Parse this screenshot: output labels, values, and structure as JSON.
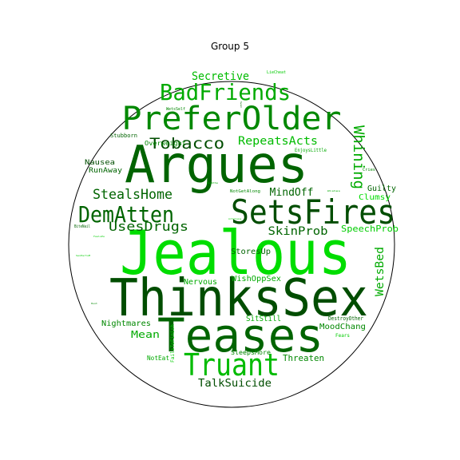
{
  "title": "Group 5",
  "colors": {
    "circle_stroke": "#000000",
    "bright_green": "#00dd00",
    "mid_green": "#00aa00",
    "green": "#008800",
    "dark_green": "#006400",
    "deep_green": "#004d00",
    "darkest_green": "#003300"
  },
  "words": [
    {
      "text": "Jealous",
      "color": "#00dd00"
    },
    {
      "text": "ThinksSex",
      "color": "#004d00"
    },
    {
      "text": "Argues",
      "color": "#006400"
    },
    {
      "text": "Teases",
      "color": "#006400"
    },
    {
      "text": "SetsFires",
      "color": "#004d00"
    },
    {
      "text": "PreferOlder",
      "color": "#008800"
    },
    {
      "text": "DemAtten",
      "color": "#006400"
    },
    {
      "text": "Truant",
      "color": "#00bb00"
    },
    {
      "text": "BadFriends",
      "color": "#00aa00"
    },
    {
      "text": "Tobacco",
      "color": "#004d00"
    },
    {
      "text": "Whining",
      "color": "#00aa00"
    },
    {
      "text": "StealsHome",
      "color": "#006400"
    },
    {
      "text": "UsesDrugs",
      "color": "#006400"
    },
    {
      "text": "RepeatsActs",
      "color": "#00bb00"
    },
    {
      "text": "Secretive",
      "color": "#00bb00"
    },
    {
      "text": "SkinProb",
      "color": "#006400"
    },
    {
      "text": "WetsBed",
      "color": "#00aa00"
    },
    {
      "text": "TalkSuicide",
      "color": "#004d00"
    },
    {
      "text": "MindOff",
      "color": "#006400"
    },
    {
      "text": "SpeechProb",
      "color": "#00cc00"
    },
    {
      "text": "Threaten",
      "color": "#008800"
    },
    {
      "text": "Mean",
      "color": "#00aa00"
    },
    {
      "text": "Nightmares",
      "color": "#008800"
    },
    {
      "text": "StoresUp",
      "color": "#006400"
    },
    {
      "text": "WishOppSex",
      "color": "#00aa00"
    },
    {
      "text": "MoodChang",
      "color": "#008800"
    },
    {
      "text": "SitStill",
      "color": "#00aa00"
    },
    {
      "text": "Nervous",
      "color": "#00aa00"
    },
    {
      "text": "Guilty",
      "color": "#006400"
    },
    {
      "text": "Clumsy",
      "color": "#00dd00"
    },
    {
      "text": "Nausea",
      "color": "#004d00"
    },
    {
      "text": "RunAway",
      "color": "#006400"
    },
    {
      "text": "Overweight",
      "color": "#008800"
    },
    {
      "text": "Stubborn",
      "color": "#006400"
    },
    {
      "text": "SleepsMore",
      "color": "#008800"
    },
    {
      "text": "NotEat",
      "color": "#00aa00"
    },
    {
      "text": "DestroyOther",
      "color": "#006400"
    },
    {
      "text": "EnjoysLittle",
      "color": "#00aa00"
    },
    {
      "text": "FailsToFinish",
      "color": "#00cc00"
    },
    {
      "text": "Fears",
      "color": "#00cc00"
    },
    {
      "text": "Cries",
      "color": "#008800"
    },
    {
      "text": "BiteNail",
      "color": "#006400"
    },
    {
      "text": "NotGetAlong",
      "color": "#008800"
    },
    {
      "text": "WetsSelf",
      "color": "#008800"
    },
    {
      "text": "LieCheat",
      "color": "#00cc00"
    },
    {
      "text": "DoubtSe",
      "color": "#00aa00"
    },
    {
      "text": "ActsYoung",
      "color": "#00cc00"
    },
    {
      "text": "SexPartsM",
      "color": "#00cc00"
    },
    {
      "text": "FeelsPe",
      "color": "#00cc00"
    },
    {
      "text": "Wishes",
      "color": "#00aa00"
    },
    {
      "text": "Sweat",
      "color": "#006400"
    },
    {
      "text": "Hunt",
      "color": "#008800"
    }
  ]
}
